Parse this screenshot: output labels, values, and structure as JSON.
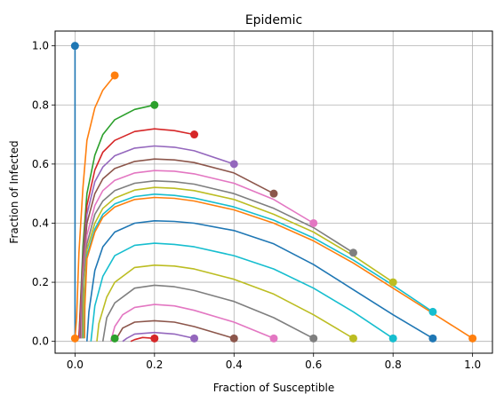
{
  "chart_data": {
    "type": "line",
    "title": "Epidemic",
    "xlabel": "Fraction of Susceptible",
    "ylabel": "Fraction of Infected",
    "xlim": [
      -0.05,
      1.05
    ],
    "ylim": [
      -0.04,
      1.05
    ],
    "xticks": [
      "0.0",
      "0.2",
      "0.4",
      "0.6",
      "0.8",
      "1.0"
    ],
    "yticks": [
      "0.0",
      "0.2",
      "0.4",
      "0.6",
      "0.8",
      "1.0"
    ],
    "grid": true,
    "series": [
      {
        "color": "#1f77b4",
        "start": [
          0.0,
          1.0
        ],
        "points": [
          [
            0.0,
            1.0
          ],
          [
            0.0,
            0.0
          ]
        ]
      },
      {
        "color": "#ff7f0e",
        "start": [
          0.1,
          0.9
        ],
        "points": [
          [
            0.1,
            0.9
          ],
          [
            0.07,
            0.85
          ],
          [
            0.05,
            0.79
          ],
          [
            0.03,
            0.68
          ],
          [
            0.02,
            0.52
          ],
          [
            0.01,
            0.3
          ],
          [
            0.004,
            0.08
          ],
          [
            0.0,
            0.01
          ]
        ]
      },
      {
        "color": "#2ca02c",
        "start": [
          0.2,
          0.8
        ],
        "points": [
          [
            0.2,
            0.8
          ],
          [
            0.15,
            0.785
          ],
          [
            0.1,
            0.75
          ],
          [
            0.07,
            0.7
          ],
          [
            0.05,
            0.63
          ],
          [
            0.03,
            0.5
          ],
          [
            0.02,
            0.32
          ],
          [
            0.01,
            0.01
          ]
        ]
      },
      {
        "color": "#d62728",
        "start": [
          0.3,
          0.7
        ],
        "points": [
          [
            0.3,
            0.7
          ],
          [
            0.25,
            0.713
          ],
          [
            0.2,
            0.719
          ],
          [
            0.15,
            0.71
          ],
          [
            0.1,
            0.68
          ],
          [
            0.07,
            0.64
          ],
          [
            0.05,
            0.58
          ],
          [
            0.03,
            0.46
          ],
          [
            0.02,
            0.28
          ],
          [
            0.01,
            0.01
          ]
        ]
      },
      {
        "color": "#9467bd",
        "start": [
          0.4,
          0.6
        ],
        "points": [
          [
            0.4,
            0.6
          ],
          [
            0.3,
            0.645
          ],
          [
            0.25,
            0.657
          ],
          [
            0.2,
            0.661
          ],
          [
            0.15,
            0.654
          ],
          [
            0.1,
            0.628
          ],
          [
            0.07,
            0.59
          ],
          [
            0.05,
            0.54
          ],
          [
            0.03,
            0.43
          ],
          [
            0.02,
            0.27
          ],
          [
            0.012,
            0.01
          ]
        ]
      },
      {
        "color": "#8c564b",
        "start": [
          0.5,
          0.5
        ],
        "points": [
          [
            0.5,
            0.5
          ],
          [
            0.4,
            0.57
          ],
          [
            0.3,
            0.605
          ],
          [
            0.25,
            0.614
          ],
          [
            0.2,
            0.617
          ],
          [
            0.15,
            0.609
          ],
          [
            0.1,
            0.585
          ],
          [
            0.07,
            0.55
          ],
          [
            0.05,
            0.5
          ],
          [
            0.03,
            0.4
          ],
          [
            0.02,
            0.25
          ],
          [
            0.014,
            0.01
          ]
        ]
      },
      {
        "color": "#e377c2",
        "start": [
          0.6,
          0.4
        ],
        "points": [
          [
            0.6,
            0.4
          ],
          [
            0.5,
            0.48
          ],
          [
            0.4,
            0.535
          ],
          [
            0.3,
            0.567
          ],
          [
            0.25,
            0.576
          ],
          [
            0.2,
            0.578
          ],
          [
            0.15,
            0.57
          ],
          [
            0.1,
            0.545
          ],
          [
            0.07,
            0.51
          ],
          [
            0.05,
            0.46
          ],
          [
            0.03,
            0.36
          ],
          [
            0.02,
            0.22
          ],
          [
            0.016,
            0.01
          ]
        ]
      },
      {
        "color": "#7f7f7f",
        "start": [
          0.7,
          0.3
        ],
        "points": [
          [
            0.7,
            0.3
          ],
          [
            0.6,
            0.385
          ],
          [
            0.5,
            0.45
          ],
          [
            0.4,
            0.5
          ],
          [
            0.3,
            0.532
          ],
          [
            0.25,
            0.54
          ],
          [
            0.2,
            0.543
          ],
          [
            0.15,
            0.535
          ],
          [
            0.1,
            0.51
          ],
          [
            0.07,
            0.475
          ],
          [
            0.05,
            0.43
          ],
          [
            0.03,
            0.33
          ],
          [
            0.02,
            0.2
          ],
          [
            0.018,
            0.01
          ]
        ]
      },
      {
        "color": "#bcbd22",
        "start": [
          0.8,
          0.2
        ],
        "points": [
          [
            0.8,
            0.2
          ],
          [
            0.7,
            0.29
          ],
          [
            0.6,
            0.37
          ],
          [
            0.5,
            0.43
          ],
          [
            0.4,
            0.48
          ],
          [
            0.3,
            0.51
          ],
          [
            0.25,
            0.518
          ],
          [
            0.2,
            0.521
          ],
          [
            0.15,
            0.512
          ],
          [
            0.1,
            0.485
          ],
          [
            0.07,
            0.45
          ],
          [
            0.05,
            0.4
          ],
          [
            0.03,
            0.31
          ],
          [
            0.022,
            0.15
          ],
          [
            0.02,
            0.01
          ]
        ]
      },
      {
        "color": "#17becf",
        "start": [
          0.9,
          0.1
        ],
        "points": [
          [
            0.9,
            0.1
          ],
          [
            0.8,
            0.19
          ],
          [
            0.7,
            0.275
          ],
          [
            0.6,
            0.35
          ],
          [
            0.5,
            0.41
          ],
          [
            0.4,
            0.455
          ],
          [
            0.3,
            0.485
          ],
          [
            0.25,
            0.494
          ],
          [
            0.2,
            0.498
          ],
          [
            0.15,
            0.49
          ],
          [
            0.1,
            0.465
          ],
          [
            0.07,
            0.43
          ],
          [
            0.05,
            0.38
          ],
          [
            0.03,
            0.29
          ],
          [
            0.025,
            0.15
          ],
          [
            0.022,
            0.01
          ]
        ]
      },
      {
        "color": "#ff7f0e",
        "start": [
          1.0,
          0.01
        ],
        "points": [
          [
            1.0,
            0.01
          ],
          [
            0.9,
            0.095
          ],
          [
            0.8,
            0.18
          ],
          [
            0.7,
            0.265
          ],
          [
            0.6,
            0.34
          ],
          [
            0.5,
            0.4
          ],
          [
            0.4,
            0.445
          ],
          [
            0.3,
            0.475
          ],
          [
            0.25,
            0.484
          ],
          [
            0.2,
            0.487
          ],
          [
            0.15,
            0.48
          ],
          [
            0.1,
            0.455
          ],
          [
            0.07,
            0.42
          ],
          [
            0.05,
            0.37
          ],
          [
            0.03,
            0.28
          ],
          [
            0.025,
            0.12
          ],
          [
            0.024,
            0.01
          ]
        ]
      },
      {
        "color": "#1f77b4",
        "start": [
          0.9,
          0.01
        ],
        "points": [
          [
            0.9,
            0.01
          ],
          [
            0.8,
            0.09
          ],
          [
            0.7,
            0.175
          ],
          [
            0.6,
            0.26
          ],
          [
            0.5,
            0.33
          ],
          [
            0.4,
            0.375
          ],
          [
            0.3,
            0.4
          ],
          [
            0.25,
            0.406
          ],
          [
            0.2,
            0.408
          ],
          [
            0.15,
            0.4
          ],
          [
            0.1,
            0.37
          ],
          [
            0.07,
            0.32
          ],
          [
            0.05,
            0.24
          ],
          [
            0.035,
            0.1
          ],
          [
            0.03,
            0.0
          ]
        ]
      },
      {
        "color": "#17becf",
        "start": [
          0.8,
          0.01
        ],
        "points": [
          [
            0.8,
            0.01
          ],
          [
            0.7,
            0.1
          ],
          [
            0.6,
            0.18
          ],
          [
            0.5,
            0.245
          ],
          [
            0.4,
            0.29
          ],
          [
            0.3,
            0.32
          ],
          [
            0.25,
            0.328
          ],
          [
            0.2,
            0.332
          ],
          [
            0.15,
            0.325
          ],
          [
            0.1,
            0.29
          ],
          [
            0.07,
            0.22
          ],
          [
            0.05,
            0.12
          ],
          [
            0.04,
            0.0
          ]
        ]
      },
      {
        "color": "#bcbd22",
        "start": [
          0.7,
          0.01
        ],
        "points": [
          [
            0.7,
            0.01
          ],
          [
            0.6,
            0.09
          ],
          [
            0.5,
            0.16
          ],
          [
            0.4,
            0.21
          ],
          [
            0.3,
            0.245
          ],
          [
            0.25,
            0.255
          ],
          [
            0.2,
            0.258
          ],
          [
            0.15,
            0.25
          ],
          [
            0.1,
            0.2
          ],
          [
            0.08,
            0.15
          ],
          [
            0.06,
            0.06
          ],
          [
            0.055,
            0.0
          ]
        ]
      },
      {
        "color": "#7f7f7f",
        "start": [
          0.6,
          0.01
        ],
        "points": [
          [
            0.6,
            0.01
          ],
          [
            0.5,
            0.08
          ],
          [
            0.4,
            0.135
          ],
          [
            0.3,
            0.172
          ],
          [
            0.25,
            0.185
          ],
          [
            0.2,
            0.19
          ],
          [
            0.15,
            0.18
          ],
          [
            0.1,
            0.13
          ],
          [
            0.08,
            0.08
          ],
          [
            0.07,
            0.0
          ]
        ]
      },
      {
        "color": "#e377c2",
        "start": [
          0.5,
          0.01
        ],
        "points": [
          [
            0.5,
            0.01
          ],
          [
            0.4,
            0.065
          ],
          [
            0.3,
            0.105
          ],
          [
            0.25,
            0.12
          ],
          [
            0.2,
            0.125
          ],
          [
            0.15,
            0.115
          ],
          [
            0.12,
            0.09
          ],
          [
            0.1,
            0.05
          ],
          [
            0.09,
            0.0
          ]
        ]
      },
      {
        "color": "#8c564b",
        "start": [
          0.4,
          0.01
        ],
        "points": [
          [
            0.4,
            0.01
          ],
          [
            0.3,
            0.05
          ],
          [
            0.25,
            0.065
          ],
          [
            0.2,
            0.07
          ],
          [
            0.15,
            0.065
          ],
          [
            0.12,
            0.045
          ],
          [
            0.1,
            0.0
          ]
        ]
      },
      {
        "color": "#9467bd",
        "start": [
          0.3,
          0.01
        ],
        "points": [
          [
            0.3,
            0.01
          ],
          [
            0.25,
            0.025
          ],
          [
            0.2,
            0.03
          ],
          [
            0.15,
            0.025
          ],
          [
            0.13,
            0.01
          ],
          [
            0.12,
            0.0
          ]
        ]
      },
      {
        "color": "#d62728",
        "start": [
          0.2,
          0.01
        ],
        "points": [
          [
            0.2,
            0.01
          ],
          [
            0.17,
            0.013
          ],
          [
            0.15,
            0.006
          ],
          [
            0.14,
            0.0
          ]
        ]
      },
      {
        "color": "#2ca02c",
        "start": [
          0.1,
          0.01
        ],
        "points": [
          [
            0.1,
            0.01
          ],
          [
            0.1,
            0.0
          ]
        ]
      },
      {
        "color": "#ff7f0e",
        "start": [
          0.0,
          0.01
        ],
        "points": [
          [
            0.0,
            0.01
          ],
          [
            0.0,
            0.0
          ]
        ]
      }
    ]
  }
}
